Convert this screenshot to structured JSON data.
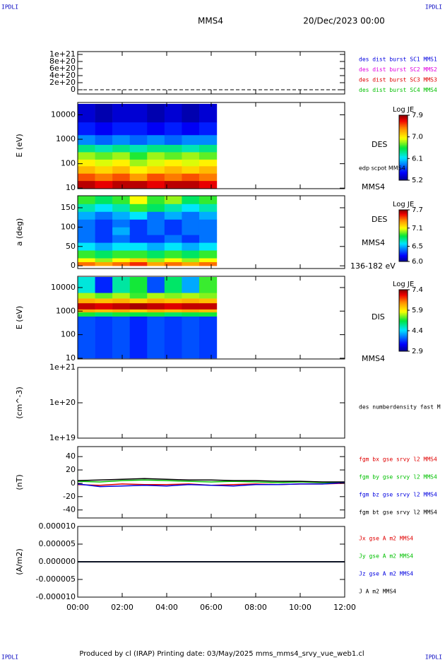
{
  "header": {
    "corner_left": "IPDLI",
    "corner_right": "IPDLI",
    "title": "MMS4",
    "date": "20/Dec/2023 00:00"
  },
  "footer": {
    "text": "Produced by cl (IRAP)   Printing date: 03/May/2025   mms_mms4_srvy_vue_web1.cl",
    "corner_left": "IPDLI",
    "corner_right": "IPDLI"
  },
  "time_axis": {
    "xlim": [
      0,
      12
    ],
    "xticks": [
      {
        "value": 0,
        "label": "00:00"
      },
      {
        "value": 2,
        "label": "02:00"
      },
      {
        "value": 4,
        "label": "04:00"
      },
      {
        "value": 6,
        "label": "06:00"
      },
      {
        "value": 8,
        "label": "08:00"
      },
      {
        "value": 10,
        "label": "10:00"
      },
      {
        "value": 12,
        "label": "12:00"
      }
    ]
  },
  "chart_data": [
    {
      "type": "line",
      "ylim": [
        -1.2e+20,
        1.08e+21
      ],
      "yticks": [
        {
          "value": 1e+21,
          "label": "1e+21"
        },
        {
          "value": 8e+20,
          "label": "8e+20"
        },
        {
          "value": 6e+20,
          "label": "6e+20"
        },
        {
          "value": 4e+20,
          "label": "4e+20"
        },
        {
          "value": 2e+20,
          "label": "2e+20"
        },
        0
      ],
      "reference_line": 0,
      "series": [
        {
          "name": "des dist burst SC1 MMS1",
          "color": "#0000e0"
        },
        {
          "name": "des dist burst SC2 MMS2",
          "color": "#e000e0"
        },
        {
          "name": "des dist burst SC3 MMS3",
          "color": "#e00000"
        },
        {
          "name": "des dist burst SC4 MMS4",
          "color": "#00c000"
        }
      ]
    },
    {
      "type": "heatmap",
      "ylabel": "E (eV)",
      "log_y": true,
      "ylim": [
        9.5,
        32000
      ],
      "yticks": [
        10,
        100,
        1000,
        10000
      ],
      "labels": [
        "DES",
        "edp scpot MMS4",
        "MMS4"
      ],
      "x_bins": [
        0,
        0.78,
        1.56,
        2.34,
        3.12,
        3.9,
        4.68,
        5.46,
        6.25
      ],
      "y_bins": [
        10,
        20,
        40,
        80,
        150,
        300,
        600,
        1500,
        5000,
        28000
      ],
      "z": [
        [
          7.8,
          7.7,
          7.8,
          7.8,
          7.7,
          7.8,
          7.8,
          7.7
        ],
        [
          7.5,
          7.4,
          7.5,
          7.3,
          7.5,
          7.4,
          7.5,
          7.4
        ],
        [
          7.2,
          7.1,
          7.2,
          7.0,
          7.1,
          7.2,
          7.1,
          7.2
        ],
        [
          7.0,
          6.9,
          7.0,
          6.8,
          6.9,
          7.0,
          6.9,
          7.0
        ],
        [
          6.8,
          6.7,
          6.8,
          6.6,
          6.8,
          6.7,
          6.8,
          6.7
        ],
        [
          6.4,
          6.3,
          6.4,
          6.3,
          6.4,
          6.4,
          6.3,
          6.4
        ],
        [
          5.9,
          5.8,
          5.9,
          5.8,
          5.9,
          5.8,
          5.9,
          5.9
        ],
        [
          5.6,
          5.5,
          5.6,
          5.6,
          5.5,
          5.6,
          5.5,
          5.6
        ],
        [
          5.4,
          5.3,
          5.4,
          5.4,
          5.3,
          5.4,
          5.3,
          5.4
        ]
      ],
      "colorbar": {
        "title": "Log JE",
        "lim": [
          5.2,
          7.9
        ],
        "ticks": [
          7.9,
          {
            "value": 7,
            "label": "7.0"
          },
          6.1,
          5.2
        ]
      }
    },
    {
      "type": "heatmap",
      "ylabel": "a (deg)",
      "log_y": false,
      "ylim": [
        -7,
        181
      ],
      "yticks": [
        0,
        50,
        100,
        150
      ],
      "labels": [
        "DES",
        "MMS4",
        "136-182 eV"
      ],
      "x_bins": [
        0,
        0.78,
        1.56,
        2.34,
        3.12,
        3.9,
        4.68,
        5.46,
        6.25
      ],
      "y_bins": [
        0,
        10,
        20,
        40,
        60,
        80,
        100,
        120,
        140,
        160,
        180
      ],
      "z": [
        [
          7.4,
          7.3,
          7.4,
          7.5,
          7.3,
          7.4,
          7.3,
          7.4
        ],
        [
          7.1,
          7.0,
          7.1,
          7.2,
          7.0,
          7.1,
          7.0,
          7.1
        ],
        [
          6.9,
          6.8,
          6.9,
          6.9,
          6.8,
          6.9,
          6.8,
          6.9
        ],
        [
          6.6,
          6.5,
          6.6,
          6.6,
          6.5,
          6.6,
          6.5,
          6.6
        ],
        [
          6.4,
          6.3,
          6.4,
          6.3,
          6.3,
          6.4,
          6.3,
          6.4
        ],
        [
          6.4,
          6.3,
          6.5,
          6.3,
          6.4,
          6.3,
          6.4,
          6.4
        ],
        [
          6.4,
          6.3,
          6.4,
          6.3,
          6.4,
          6.3,
          6.4,
          6.4
        ],
        [
          6.5,
          6.4,
          6.5,
          6.6,
          6.4,
          6.5,
          6.4,
          6.5
        ],
        [
          6.7,
          6.6,
          6.7,
          6.9,
          6.8,
          6.7,
          6.6,
          6.7
        ],
        [
          6.9,
          6.8,
          6.9,
          7.1,
          6.9,
          7.0,
          6.8,
          6.9
        ]
      ],
      "colorbar": {
        "title": "Log JE",
        "lim": [
          6.0,
          7.7
        ],
        "ticks": [
          7.7,
          7.1,
          6.5,
          {
            "value": 6,
            "label": "6.0"
          }
        ]
      }
    },
    {
      "type": "heatmap",
      "ylabel": "E (eV)",
      "log_y": true,
      "ylim": [
        9.3,
        30000
      ],
      "yticks": [
        10,
        100,
        1000,
        10000
      ],
      "labels": [
        "DIS",
        "MMS4"
      ],
      "x_bins": [
        0,
        0.78,
        1.56,
        2.34,
        3.12,
        3.9,
        4.68,
        5.46,
        6.25
      ],
      "y_bins": [
        10,
        600,
        900,
        1200,
        2200,
        3500,
        6000,
        28000
      ],
      "z": [
        [
          3.8,
          3.7,
          3.8,
          3.6,
          3.8,
          3.7,
          3.8,
          3.7
        ],
        [
          5.2,
          5.0,
          5.2,
          5.1,
          5.2,
          5.0,
          5.1,
          5.2
        ],
        [
          6.3,
          6.2,
          6.3,
          6.1,
          6.3,
          6.2,
          6.3,
          6.2
        ],
        [
          7.2,
          7.1,
          7.2,
          7.3,
          7.2,
          7.1,
          7.2,
          7.2
        ],
        [
          6.3,
          6.2,
          6.3,
          6.1,
          6.3,
          6.2,
          6.3,
          6.2
        ],
        [
          5.6,
          5.4,
          5.6,
          5.3,
          5.6,
          5.5,
          5.6,
          5.5
        ],
        [
          4.6,
          3.6,
          4.8,
          5.2,
          3.8,
          5.0,
          4.2,
          5.3
        ]
      ],
      "colorbar": {
        "title": "Log JE",
        "lim": [
          2.9,
          7.4
        ],
        "ticks": [
          7.4,
          5.9,
          4.4,
          2.9
        ]
      }
    },
    {
      "type": "line",
      "ylabel": "(cm^-3)",
      "log_y": true,
      "ylim": [
        1e+19,
        1e+21
      ],
      "yticks": [
        {
          "value": 1e+21,
          "label": "1e+21"
        },
        {
          "value": 1e+20,
          "label": "1e+20"
        },
        {
          "value": 1e+19,
          "label": "1e+19"
        }
      ],
      "series": [
        {
          "name": "des numberdensity fast M",
          "color": "#000000"
        }
      ]
    },
    {
      "type": "line",
      "ylabel": "(nT)",
      "ylim": [
        -52,
        55
      ],
      "yticks": [
        40,
        20,
        0,
        -20,
        -40
      ],
      "x": [
        0,
        1,
        2,
        3,
        4,
        5,
        6,
        7,
        8,
        9,
        10,
        11,
        12
      ],
      "series": [
        {
          "name": "fgm bx gse srvy l2 MMS4",
          "color": "#e00000",
          "values": [
            -2,
            -3,
            -1,
            -2,
            -2,
            -1,
            -3,
            -2,
            -1,
            -2,
            -1,
            -1,
            0
          ]
        },
        {
          "name": "fgm by gse srvy l2 MMS4",
          "color": "#00c000",
          "values": [
            3,
            2,
            4,
            5,
            4,
            3,
            2,
            3,
            2,
            1,
            2,
            1,
            1
          ]
        },
        {
          "name": "fgm bz gse srvy l2 MMS4",
          "color": "#0000e0",
          "values": [
            -1,
            -5,
            -4,
            -3,
            -4,
            -2,
            -3,
            -4,
            -2,
            -2,
            -1,
            -1,
            1
          ]
        },
        {
          "name": "fgm bt gse srvy l2 MMS4",
          "color": "#000000",
          "values": [
            4,
            5,
            6,
            7,
            6,
            5,
            5,
            4,
            4,
            3,
            3,
            2,
            2
          ]
        }
      ]
    },
    {
      "type": "line",
      "ylabel": "(A/m2)",
      "ylim": [
        -1e-05,
        1e-05
      ],
      "yticks": [
        {
          "value": 1e-05,
          "label": "0.000010"
        },
        {
          "value": 5e-06,
          "label": "0.000005"
        },
        {
          "value": 0,
          "label": "0.000000"
        },
        {
          "value": -5e-06,
          "label": "-0.000005"
        },
        {
          "value": -1e-05,
          "label": "-0.000010"
        }
      ],
      "x": [
        0,
        1,
        2,
        3,
        4,
        5,
        6,
        7,
        8,
        9,
        10,
        11,
        12
      ],
      "series": [
        {
          "name": "Jx gse A m2 MMS4",
          "color": "#e00000",
          "values": [
            0,
            0,
            0,
            0,
            0,
            0,
            0,
            0,
            0,
            0,
            0,
            0,
            0
          ]
        },
        {
          "name": "Jy gse A m2 MMS4",
          "color": "#00c000",
          "values": [
            0,
            0,
            0,
            0,
            0,
            0,
            0,
            0,
            0,
            0,
            0,
            0,
            0
          ]
        },
        {
          "name": "Jz gse A m2 MMS4",
          "color": "#0000e0",
          "values": [
            0,
            0,
            0,
            0,
            0,
            0,
            0,
            0,
            0,
            0,
            0,
            0,
            0
          ]
        },
        {
          "name": "J A m2 MMS4",
          "color": "#000000",
          "values": [
            0,
            0,
            0,
            0,
            0,
            0,
            0,
            0,
            0,
            0,
            0,
            0,
            0
          ]
        }
      ]
    }
  ]
}
